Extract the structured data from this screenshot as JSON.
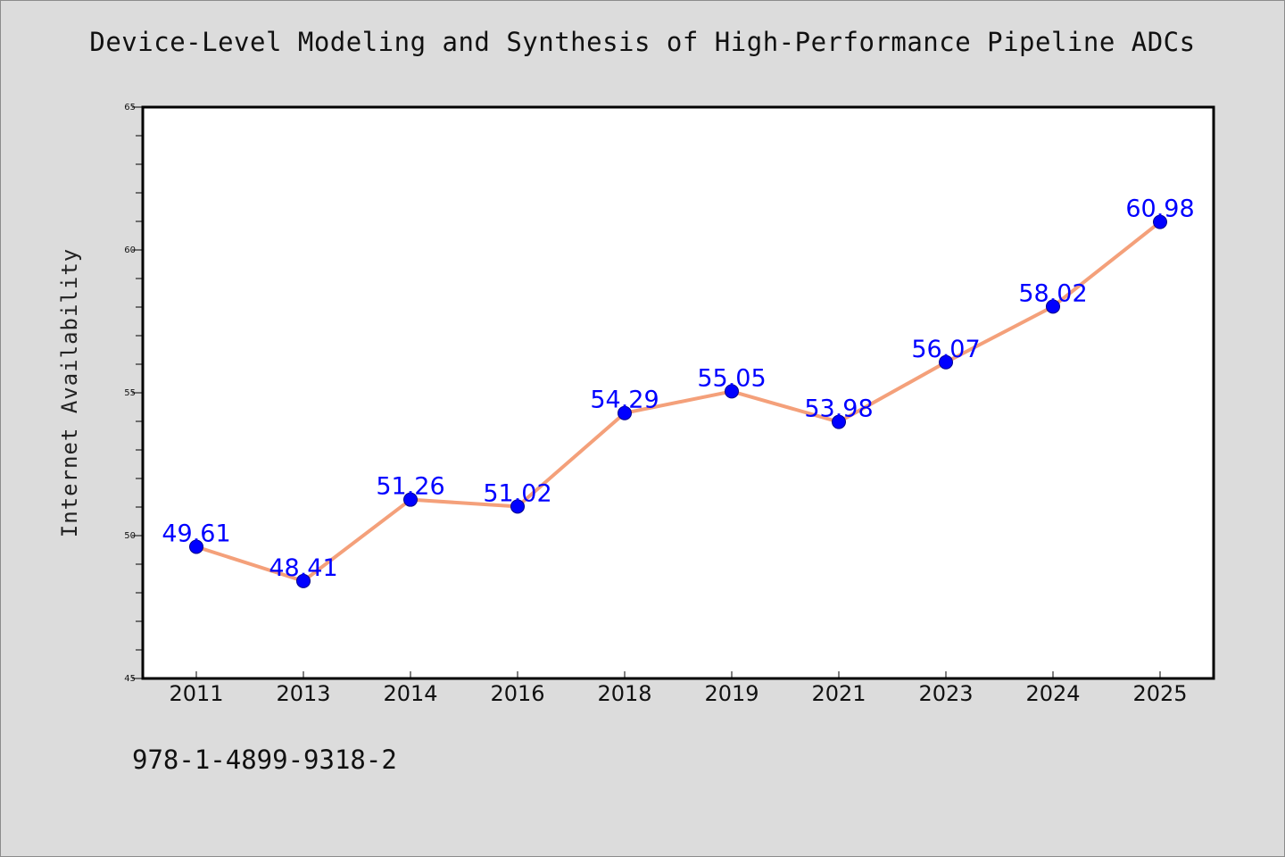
{
  "page": {
    "title": "Device-Level Modeling and Synthesis of High-Performance Pipeline ADCs",
    "isbn": "978-1-4899-9318-2"
  },
  "chart_data": {
    "type": "line",
    "title": "Device-Level Modeling and Synthesis of High-Performance Pipeline ADCs",
    "xlabel": "",
    "ylabel": "Internet Availability",
    "categories": [
      "2011",
      "2013",
      "2014",
      "2016",
      "2018",
      "2019",
      "2021",
      "2023",
      "2024",
      "2025"
    ],
    "series": [
      {
        "values": [
          49.61,
          48.41,
          51.26,
          51.02,
          54.29,
          55.05,
          53.98,
          56.07,
          58.02,
          60.98
        ],
        "labels": [
          "49.61",
          "48.41",
          "51.26",
          "51.02",
          "54.29",
          "55.05",
          "53.98",
          "56.07",
          "58.02",
          "60.98"
        ],
        "line_color": "#f4a07a",
        "marker_color": "#0000ff"
      }
    ],
    "ylim": [
      45,
      65
    ],
    "yticks": [
      45,
      50,
      55,
      60,
      65
    ],
    "ytick_labels": [
      "45",
      "50",
      "55",
      "60",
      "65"
    ],
    "grid": false,
    "legend": "none",
    "plot_background": "#ffffff",
    "page_background": "#dcdcdc"
  }
}
